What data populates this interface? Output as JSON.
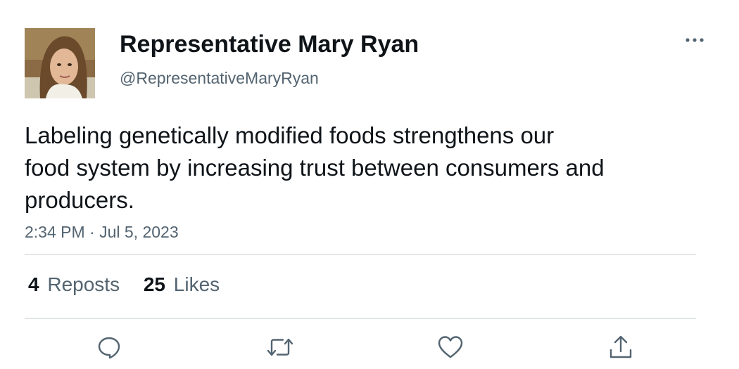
{
  "author": {
    "display_name": "Representative Mary Ryan",
    "handle": "@RepresentativeMaryRyan",
    "avatar_icon": "profile-photo"
  },
  "tweet": {
    "text_lines": [
      "Labeling genetically modified foods strengthens our",
      "food system by increasing trust between consumers and",
      "producers."
    ],
    "timestamp": "2:34 PM · Jul 5, 2023"
  },
  "stats": {
    "reposts_count": "4",
    "reposts_label": "Reposts",
    "likes_count": "25",
    "likes_label": "Likes"
  },
  "actions": [
    {
      "icon": "reply-icon"
    },
    {
      "icon": "repost-icon"
    },
    {
      "icon": "like-icon"
    },
    {
      "icon": "share-icon"
    }
  ],
  "colors": {
    "primary_text": "#0f1419",
    "secondary_text": "#536471",
    "divider": "#e3e6e8"
  }
}
